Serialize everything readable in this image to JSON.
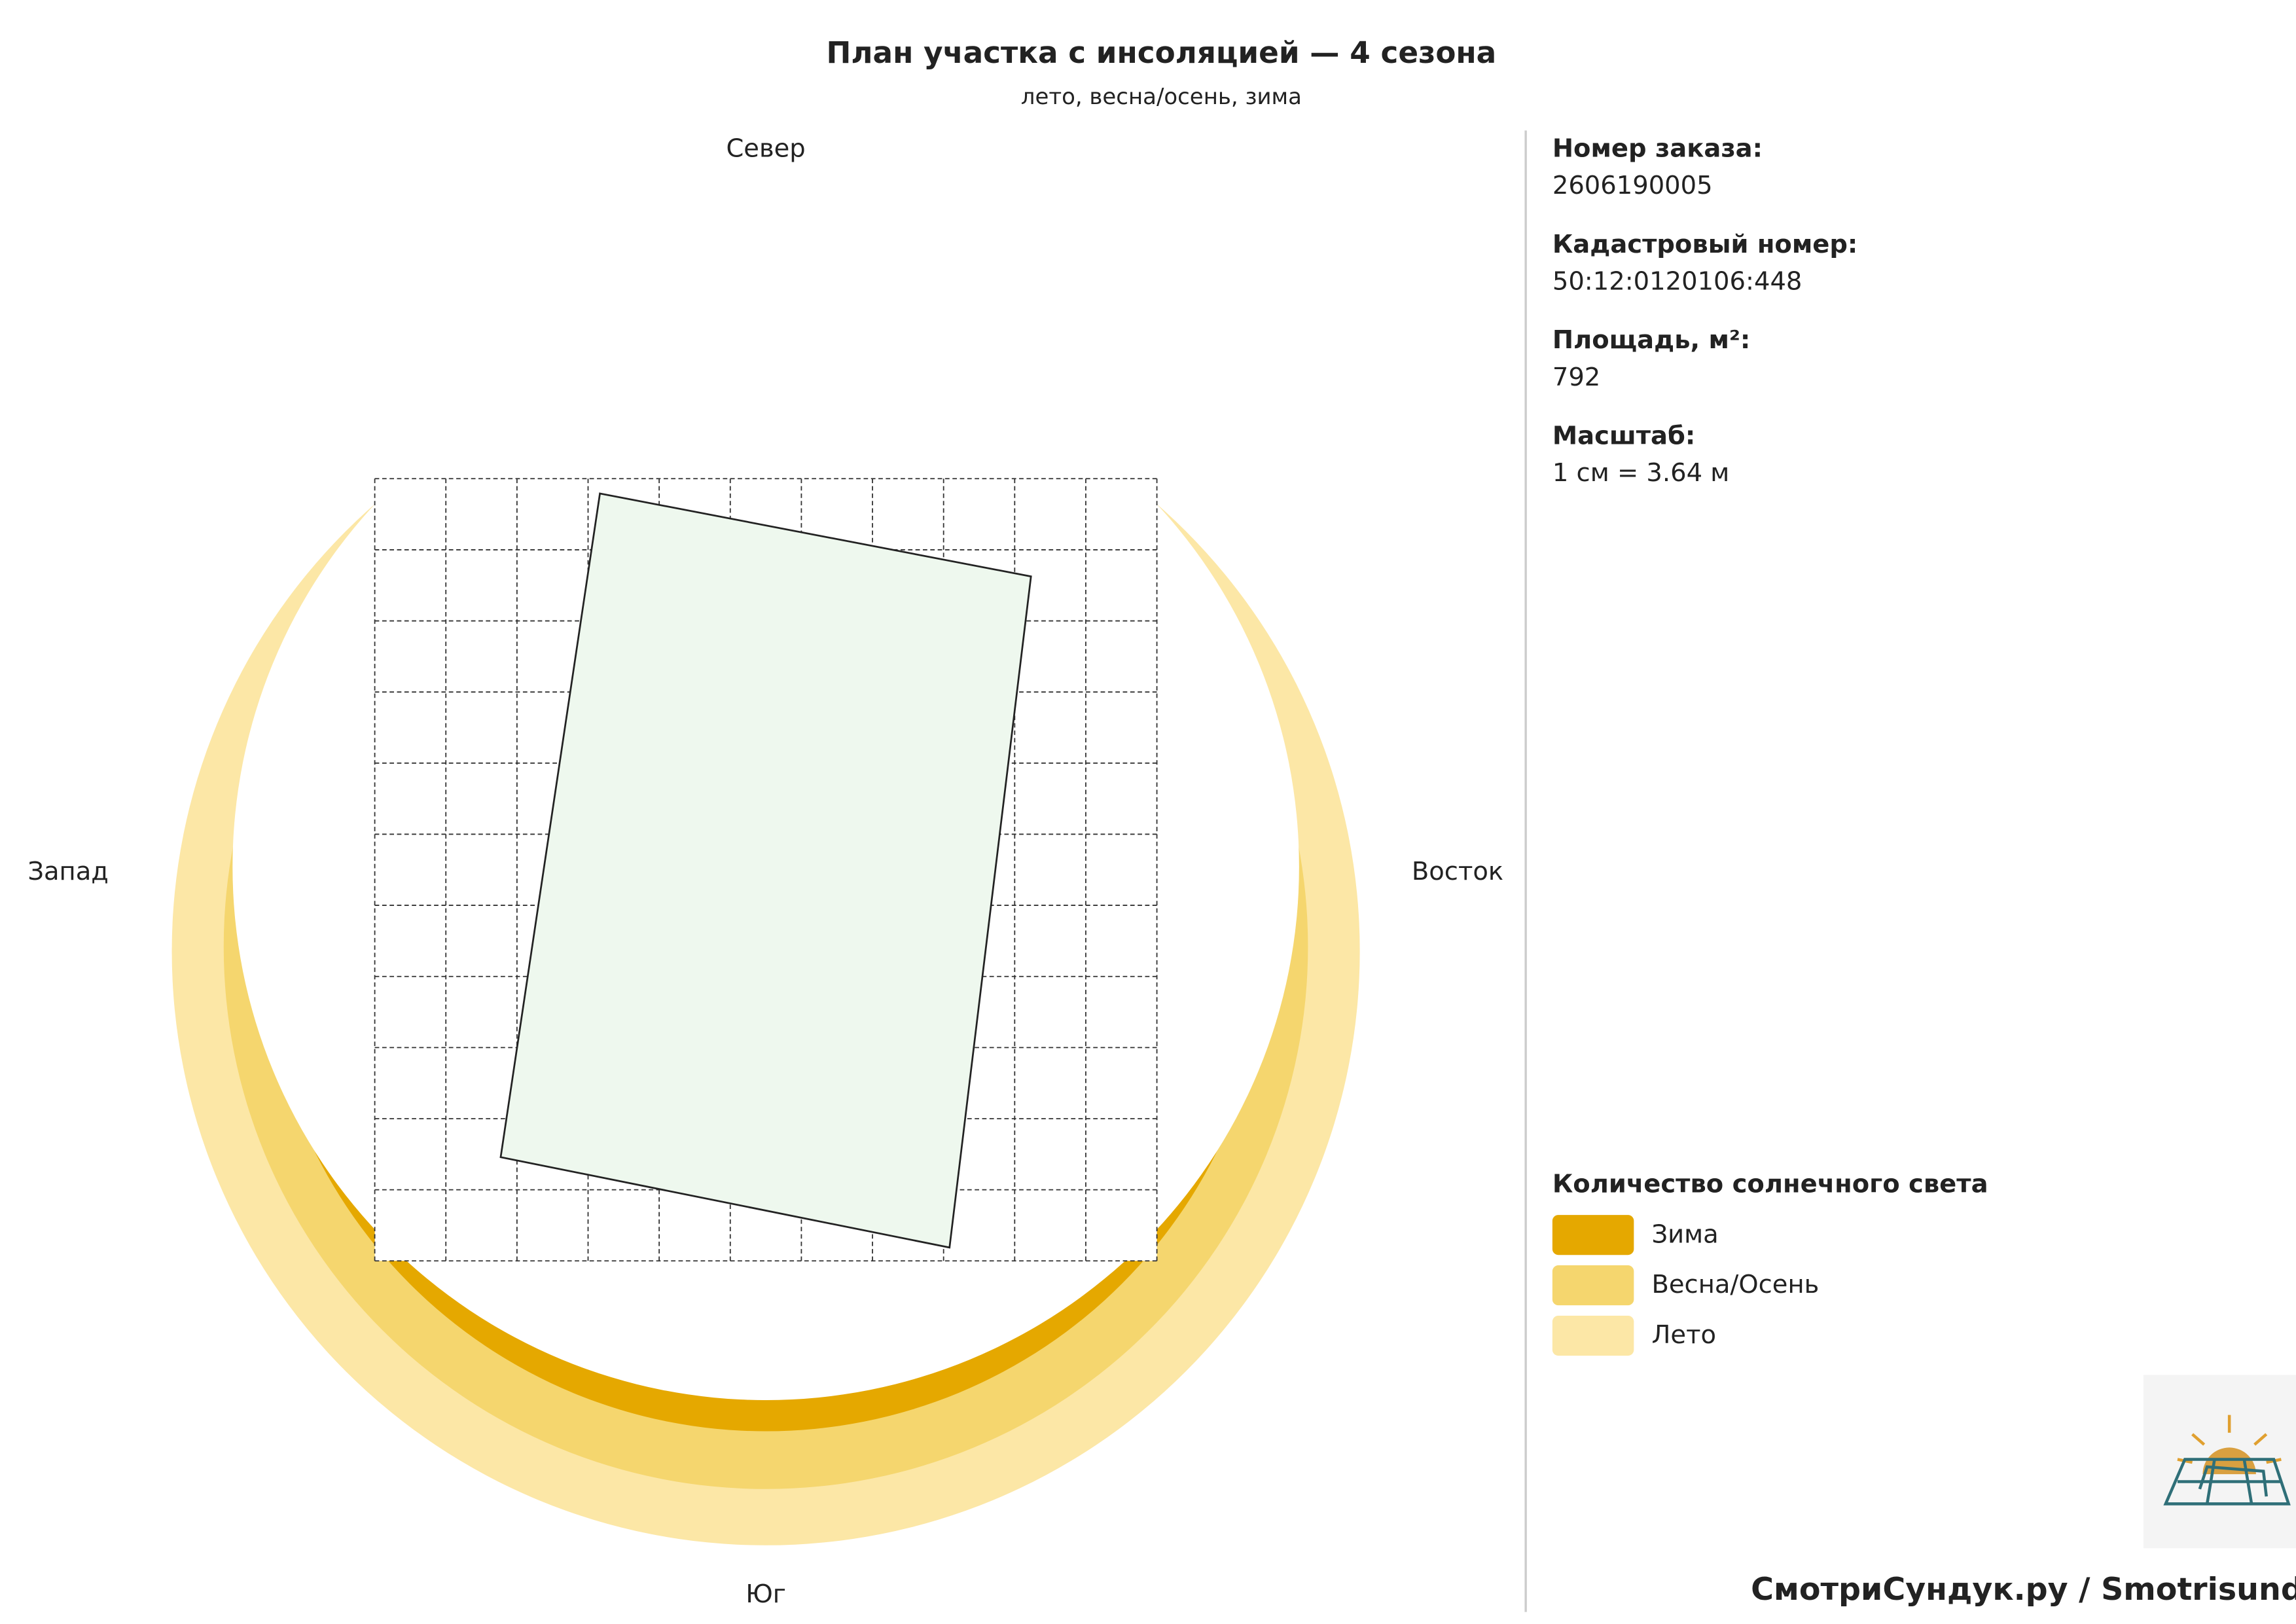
{
  "header": {
    "title": "План участка с инсоляцией — 4 сезона",
    "subtitle": "лето, весна/осень, зима"
  },
  "directions": {
    "north": "Север",
    "south": "Юг",
    "west": "Запад",
    "east": "Восток"
  },
  "info": [
    {
      "label": "Номер заказа:",
      "value": "2606190005"
    },
    {
      "label": "Кадастровый номер:",
      "value": "50:12:0120106:448"
    },
    {
      "label": "Площадь, м²:",
      "value": "792"
    },
    {
      "label": "Масштаб:",
      "value": "1 см = 3.64 м"
    }
  ],
  "legend": {
    "title": "Количество солнечного света",
    "items": [
      {
        "name": "Зима",
        "color": "#e5a800"
      },
      {
        "name": "Весна/Осень",
        "color": "#f5d66e"
      },
      {
        "name": "Лето",
        "color": "#fce7a6"
      }
    ]
  },
  "footer": {
    "brand": "СмотриСундук.ру / Smotrisunduk.ru"
  }
}
